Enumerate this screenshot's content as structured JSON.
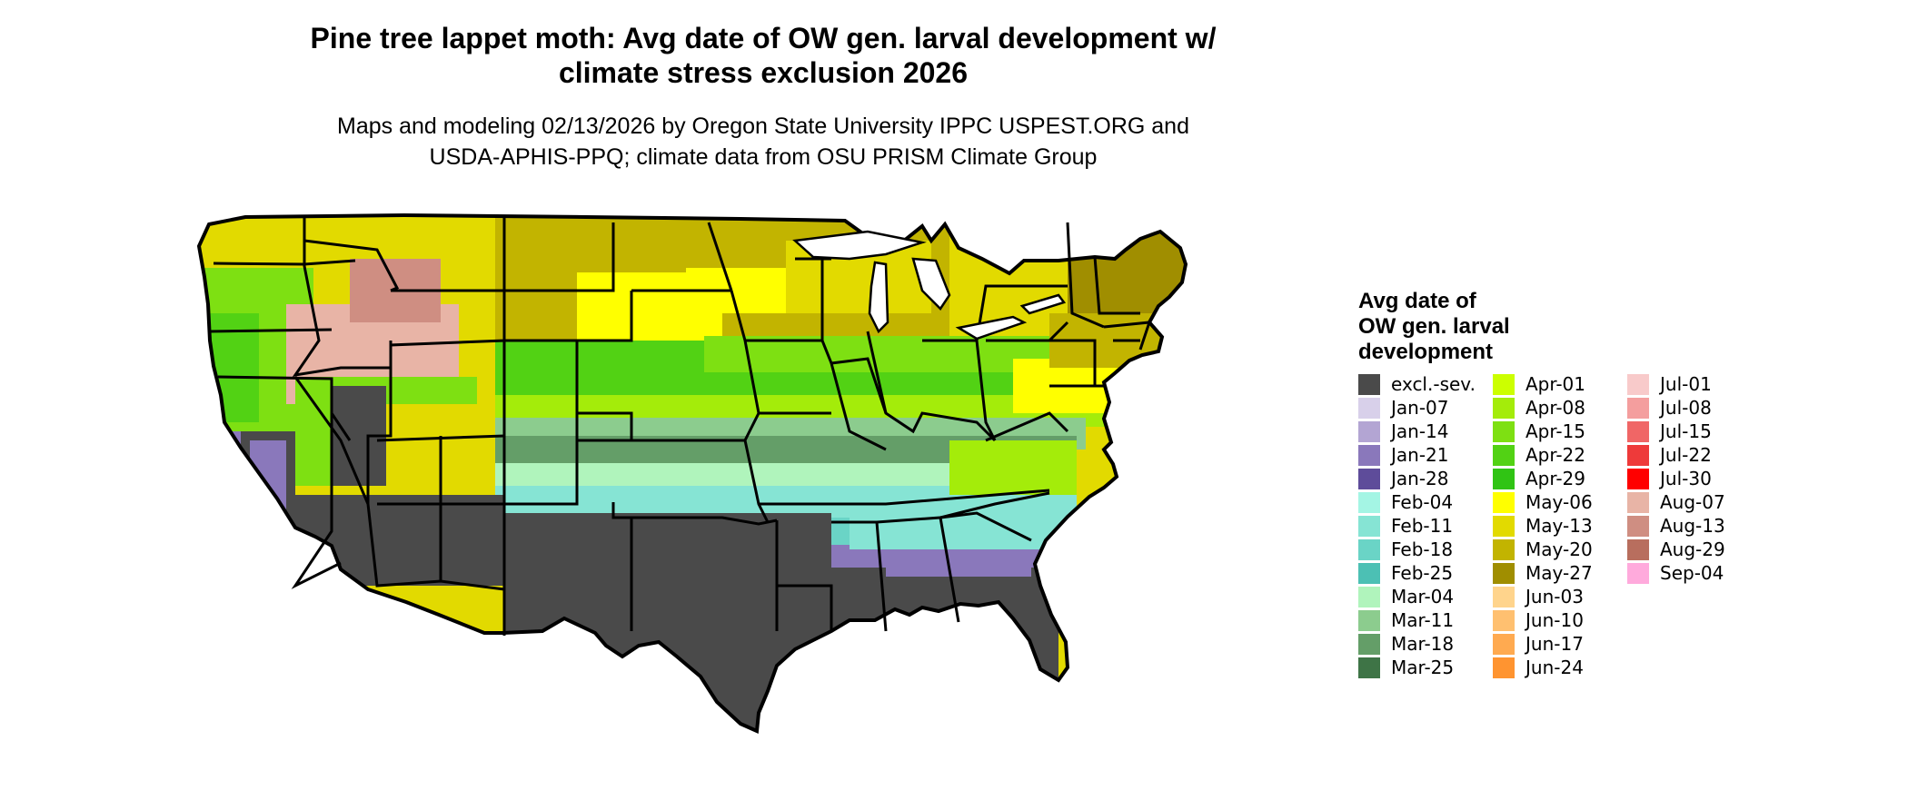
{
  "header": {
    "title_line1": "Pine tree lappet moth: Avg date of OW gen. larval development w/",
    "title_line2": "climate stress exclusion 2026",
    "subtitle_line1": "Maps and modeling 02/13/2026 by Oregon State University IPPC USPEST.ORG and",
    "subtitle_line2": "USDA-APHIS-PPQ; climate data from OSU PRISM Climate Group"
  },
  "legend": {
    "title_line1": "Avg date of",
    "title_line2": "OW gen. larval",
    "title_line3": "development",
    "items": [
      {
        "label": "excl.-sev.",
        "color": "#4a4a4a"
      },
      {
        "label": "Jan-07",
        "color": "#d8d0ea"
      },
      {
        "label": "Jan-14",
        "color": "#b3a5d3"
      },
      {
        "label": "Jan-21",
        "color": "#8a78bb"
      },
      {
        "label": "Jan-28",
        "color": "#5e4c9a"
      },
      {
        "label": "Feb-04",
        "color": "#a4f5e4"
      },
      {
        "label": "Feb-11",
        "color": "#86e4d4"
      },
      {
        "label": "Feb-18",
        "color": "#6ad4c6"
      },
      {
        "label": "Feb-25",
        "color": "#4cc0b4"
      },
      {
        "label": "Mar-04",
        "color": "#b0f4bc"
      },
      {
        "label": "Mar-11",
        "color": "#8ccc8e"
      },
      {
        "label": "Mar-18",
        "color": "#649e68"
      },
      {
        "label": "Mar-25",
        "color": "#3e7446"
      },
      {
        "label": "Apr-01",
        "color": "#ccff00"
      },
      {
        "label": "Apr-08",
        "color": "#a4ec0a"
      },
      {
        "label": "Apr-15",
        "color": "#7ee012"
      },
      {
        "label": "Apr-22",
        "color": "#52d214"
      },
      {
        "label": "Apr-29",
        "color": "#30c414"
      },
      {
        "label": "May-06",
        "color": "#ffff00"
      },
      {
        "label": "May-13",
        "color": "#e2da00"
      },
      {
        "label": "May-20",
        "color": "#c2b400"
      },
      {
        "label": "May-27",
        "color": "#a08e00"
      },
      {
        "label": "Jun-03",
        "color": "#ffd48c"
      },
      {
        "label": "Jun-10",
        "color": "#ffc070"
      },
      {
        "label": "Jun-17",
        "color": "#ffaa50"
      },
      {
        "label": "Jun-24",
        "color": "#ff9430"
      },
      {
        "label": "Jul-01",
        "color": "#f8caca"
      },
      {
        "label": "Jul-08",
        "color": "#f49e9e"
      },
      {
        "label": "Jul-15",
        "color": "#f06666"
      },
      {
        "label": "Jul-22",
        "color": "#ee3a3a"
      },
      {
        "label": "Jul-30",
        "color": "#ff0000"
      },
      {
        "label": "Aug-07",
        "color": "#e8b4a6"
      },
      {
        "label": "Aug-13",
        "color": "#cf8e82"
      },
      {
        "label": "Aug-29",
        "color": "#b86e5e"
      },
      {
        "label": "Sep-04",
        "color": "#ffaadc"
      }
    ]
  },
  "map": {
    "region": "Contiguous United States",
    "colors": {
      "state_border": "#000000",
      "excluded": "#4a4a4a",
      "north_yellow": "#e2da00",
      "olive": "#c2b400",
      "green": "#52d214",
      "mid_green": "#8ccc8e",
      "teal": "#86e4d4",
      "purple": "#8a78bb",
      "mountain": "#e8b4a6"
    }
  }
}
